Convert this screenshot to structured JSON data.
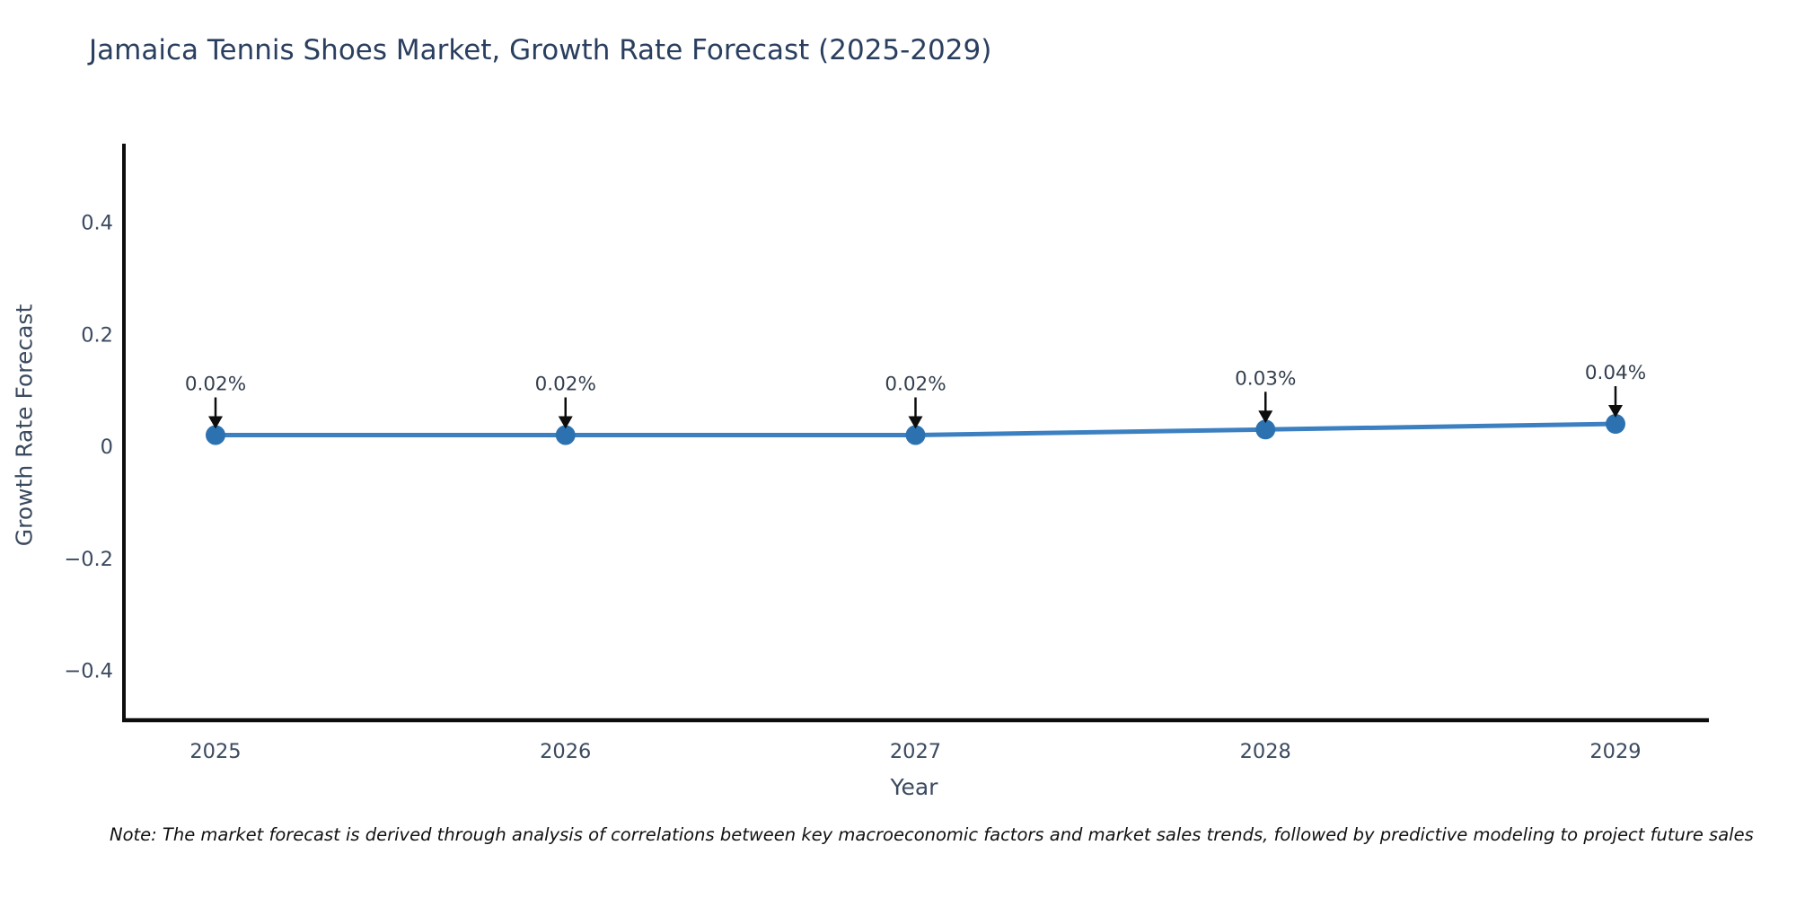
{
  "header": {
    "title": "Jamaica Tennis Shoes Market, Growth Rate Forecast (2025-2029)"
  },
  "footer": {
    "note": "Note: The market forecast is derived through analysis of correlations between key macroeconomic factors and market sales trends, followed by predictive modeling to project future sales"
  },
  "chart_data": {
    "type": "line",
    "title": "Jamaica Tennis Shoes Market, Growth Rate Forecast (2025-2029)",
    "xlabel": "Year",
    "ylabel": "Growth Rate Forecast",
    "categories": [
      "2025",
      "2026",
      "2027",
      "2028",
      "2029"
    ],
    "series": [
      {
        "name": "Growth Rate Forecast",
        "values": [
          0.02,
          0.02,
          0.02,
          0.03,
          0.04
        ]
      }
    ],
    "point_labels": [
      "0.02%",
      "0.02%",
      "0.02%",
      "0.03%",
      "0.04%"
    ],
    "yticks": [
      0.4,
      0.2,
      0,
      -0.2,
      -0.4
    ],
    "ytick_labels": [
      "0.4",
      "0.2",
      "0",
      "−0.2",
      "−0.4"
    ],
    "ylim": [
      -0.49,
      0.545
    ],
    "grid": false,
    "legend_position": "none",
    "colors": {
      "line": "#3c80c2",
      "marker": "#2d72b0",
      "arrow": "#0d0d0d",
      "annotation_text": "#333f4f",
      "axis_spine": "#0d0d0d",
      "tick_label": "#3b4a5f",
      "title": "#2a3f5f"
    }
  }
}
